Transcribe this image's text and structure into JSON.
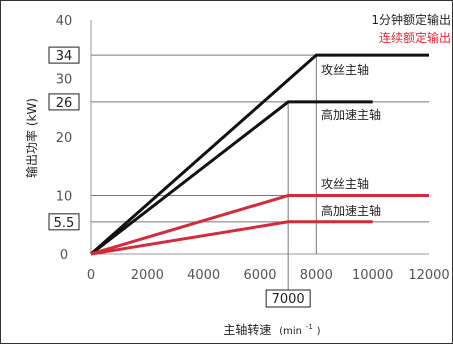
{
  "chart_data": {
    "type": "line",
    "title": "",
    "xlabel": "主轴转速",
    "xlabel_unit": "(min",
    "xlabel_unit_sup": "-1",
    "xlabel_unit_end": ")",
    "ylabel": "输出功率 (kW)",
    "xlim": [
      0,
      12000
    ],
    "ylim": [
      0,
      40
    ],
    "x_ticks": [
      "0",
      "2000",
      "4000",
      "6000",
      "8000",
      "10000",
      "12000"
    ],
    "x_tick_values": [
      0,
      2000,
      4000,
      6000,
      8000,
      10000,
      12000
    ],
    "y_ticks": [
      "0",
      "10",
      "20",
      "30",
      "40"
    ],
    "y_tick_values": [
      0,
      10,
      20,
      30,
      40
    ],
    "boxed_y_values": [
      {
        "value": 34,
        "label": "34"
      },
      {
        "value": 26,
        "label": "26"
      },
      {
        "value": 5.5,
        "label": "5.5"
      }
    ],
    "boxed_x_values": [
      {
        "value": 7000,
        "label": "7000"
      }
    ],
    "legend": [
      {
        "label": "1分钟额定输出",
        "color": "#222222"
      },
      {
        "label": "连续额定输出",
        "color": "#e8263a"
      }
    ],
    "series": [
      {
        "name": "攻丝主轴",
        "rating": "1分钟额定输出",
        "color": "#111111",
        "x": [
          0,
          8000,
          12000
        ],
        "y": [
          0,
          34,
          34
        ]
      },
      {
        "name": "高加速主轴",
        "rating": "1分钟额定输出",
        "color": "#111111",
        "x": [
          0,
          7000,
          10000
        ],
        "y": [
          0,
          26,
          26
        ]
      },
      {
        "name": "攻丝主轴",
        "rating": "连续额定输出",
        "color": "#d42a3c",
        "x": [
          0,
          7000,
          12000
        ],
        "y": [
          0,
          10,
          10
        ]
      },
      {
        "name": "高加速主轴",
        "rating": "连续额定输出",
        "color": "#d42a3c",
        "x": [
          0,
          7000,
          10000
        ],
        "y": [
          0,
          5.5,
          5.5
        ]
      }
    ],
    "guide_lines": {
      "vertical": [
        7000,
        8000
      ],
      "horizontal": [
        34,
        26,
        10,
        5.5
      ]
    },
    "grid": false
  }
}
